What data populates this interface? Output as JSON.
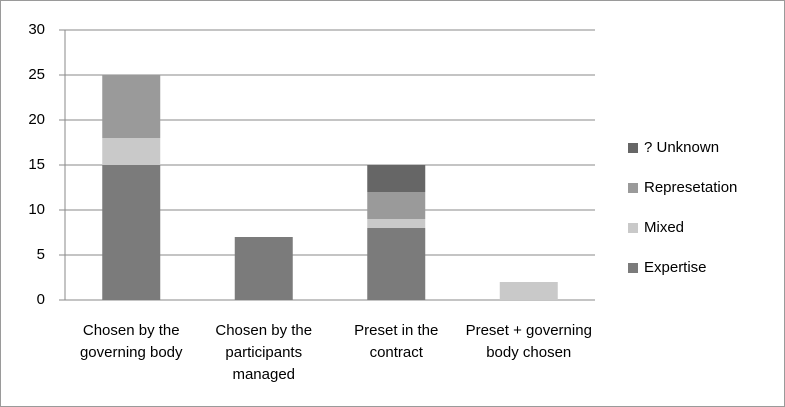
{
  "chart_data": {
    "type": "stacked_bar",
    "categories": [
      "Chosen by the governing body",
      "Chosen by the participants managed",
      "Preset in the contract",
      "Preset + governing body chosen"
    ],
    "series": [
      {
        "name": "Expertise",
        "color": "#7b7b7b",
        "values": [
          15,
          7,
          8,
          0
        ]
      },
      {
        "name": "Mixed",
        "color": "#c9c9c9",
        "values": [
          3,
          0,
          1,
          2
        ]
      },
      {
        "name": "Represetation",
        "color": "#9a9a9a",
        "values": [
          7,
          0,
          3,
          0
        ]
      },
      {
        "name": "? Unknown",
        "color": "#666666",
        "values": [
          0,
          0,
          3,
          0
        ]
      }
    ],
    "ylim": [
      0,
      30
    ],
    "yticks": [
      0,
      5,
      10,
      15,
      20,
      25,
      30
    ],
    "grid": true,
    "legend": "right"
  }
}
